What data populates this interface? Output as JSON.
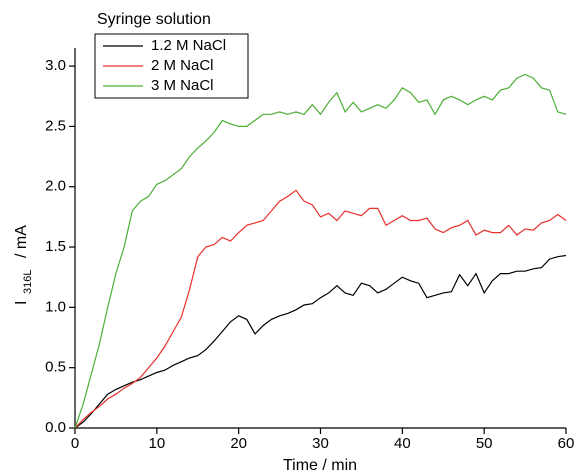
{
  "chart_data": {
    "type": "line",
    "legend_title": "Syringe solution",
    "y_label": {
      "main": "I",
      "sub": "316L",
      "unit": "/ mA"
    },
    "x_label": "Time / min",
    "legend_position": "upper left",
    "x": [
      0,
      1,
      2,
      3,
      4,
      5,
      6,
      7,
      8,
      9,
      10,
      11,
      12,
      13,
      14,
      15,
      16,
      17,
      18,
      19,
      20,
      21,
      22,
      23,
      24,
      25,
      26,
      27,
      28,
      29,
      30,
      31,
      32,
      33,
      34,
      35,
      36,
      37,
      38,
      39,
      40,
      41,
      42,
      43,
      44,
      45,
      46,
      47,
      48,
      49,
      50,
      51,
      52,
      53,
      54,
      55,
      56,
      57,
      58,
      59,
      60
    ],
    "series": [
      {
        "name": "1.2 M NaCl",
        "color": "#000000",
        "values": [
          0,
          0.05,
          0.12,
          0.2,
          0.28,
          0.32,
          0.35,
          0.38,
          0.4,
          0.43,
          0.46,
          0.48,
          0.52,
          0.55,
          0.58,
          0.6,
          0.65,
          0.72,
          0.8,
          0.88,
          0.93,
          0.9,
          0.78,
          0.85,
          0.9,
          0.93,
          0.95,
          0.98,
          1.02,
          1.03,
          1.08,
          1.12,
          1.18,
          1.12,
          1.1,
          1.2,
          1.18,
          1.12,
          1.15,
          1.2,
          1.25,
          1.22,
          1.2,
          1.08,
          1.1,
          1.12,
          1.13,
          1.27,
          1.18,
          1.28,
          1.12,
          1.22,
          1.28,
          1.28,
          1.3,
          1.3,
          1.32,
          1.33,
          1.4,
          1.42,
          1.43
        ]
      },
      {
        "name": "2 M NaCl",
        "color": "#e8302a",
        "values": [
          0,
          0.07,
          0.13,
          0.18,
          0.24,
          0.28,
          0.33,
          0.37,
          0.42,
          0.5,
          0.58,
          0.68,
          0.8,
          0.92,
          1.15,
          1.42,
          1.5,
          1.52,
          1.58,
          1.55,
          1.62,
          1.68,
          1.7,
          1.72,
          1.8,
          1.88,
          1.92,
          1.97,
          1.88,
          1.85,
          1.75,
          1.78,
          1.72,
          1.8,
          1.78,
          1.76,
          1.82,
          1.82,
          1.68,
          1.72,
          1.76,
          1.72,
          1.72,
          1.74,
          1.65,
          1.62,
          1.66,
          1.68,
          1.72,
          1.6,
          1.64,
          1.62,
          1.62,
          1.68,
          1.6,
          1.65,
          1.64,
          1.7,
          1.72,
          1.77,
          1.72
        ]
      },
      {
        "name": "3 M NaCl",
        "color": "#4caf35",
        "values": [
          0,
          0.2,
          0.45,
          0.7,
          1.0,
          1.28,
          1.5,
          1.8,
          1.88,
          1.92,
          2.02,
          2.05,
          2.1,
          2.15,
          2.25,
          2.32,
          2.38,
          2.45,
          2.55,
          2.52,
          2.5,
          2.5,
          2.55,
          2.6,
          2.6,
          2.62,
          2.6,
          2.62,
          2.6,
          2.68,
          2.6,
          2.7,
          2.78,
          2.62,
          2.7,
          2.62,
          2.65,
          2.68,
          2.65,
          2.72,
          2.82,
          2.78,
          2.7,
          2.72,
          2.6,
          2.72,
          2.75,
          2.72,
          2.68,
          2.72,
          2.75,
          2.72,
          2.8,
          2.82,
          2.9,
          2.93,
          2.9,
          2.82,
          2.8,
          2.62,
          2.6
        ]
      }
    ],
    "xlim": [
      0,
      60
    ],
    "xticks": [
      0,
      10,
      20,
      30,
      40,
      50,
      60
    ],
    "ylim": [
      0,
      3.15
    ],
    "yticks": [
      {
        "value": 0,
        "label": "0.0"
      },
      0.5,
      {
        "value": 1,
        "label": "1.0"
      },
      1.5,
      {
        "value": 2,
        "label": "2.0"
      },
      2.5,
      {
        "value": 3,
        "label": "3.0"
      }
    ]
  }
}
